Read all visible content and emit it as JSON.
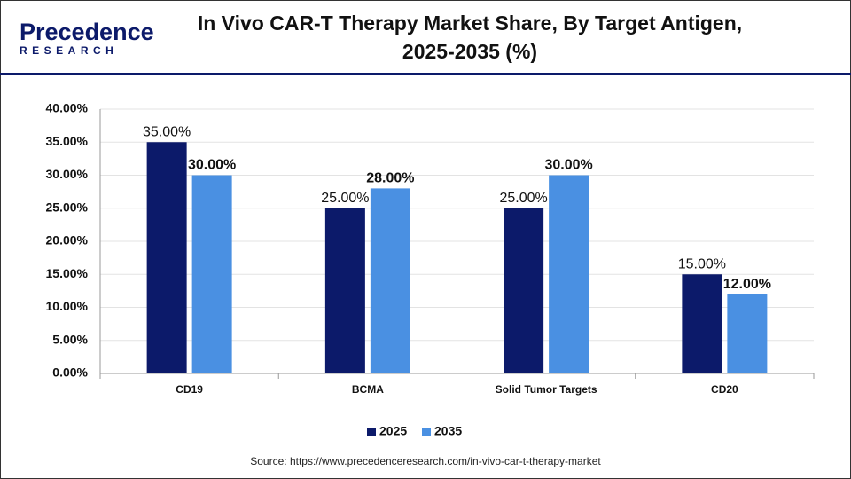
{
  "logo": {
    "name": "Precedence",
    "tagline": "RESEARCH"
  },
  "chart_data": {
    "type": "bar",
    "title": "In Vivo CAR-T Therapy Market Share, By Target Antigen, 2025-2035 (%)",
    "categories": [
      "CD19",
      "BCMA",
      "Solid Tumor Targets",
      "CD20"
    ],
    "series": [
      {
        "name": "2025",
        "color": "#0c1a6a",
        "values": [
          35,
          25,
          25,
          15
        ],
        "value_labels": [
          "35.00%",
          "25.00%",
          "25.00%",
          "15.00%"
        ]
      },
      {
        "name": "2035",
        "color": "#4a90e2",
        "values": [
          30,
          28,
          30,
          12
        ],
        "value_labels": [
          "30.00%",
          "28.00%",
          "30.00%",
          "12.00%"
        ]
      }
    ],
    "ylim": [
      0,
      40
    ],
    "yticks": [
      {
        "value": 0,
        "label": "0.00%"
      },
      {
        "value": 5,
        "label": "5.00%"
      },
      {
        "value": 10,
        "label": "10.00%"
      },
      {
        "value": 15,
        "label": "15.00%"
      },
      {
        "value": 20,
        "label": "20.00%"
      },
      {
        "value": 25,
        "label": "25.00%"
      },
      {
        "value": 30,
        "label": "30.00%"
      },
      {
        "value": 35,
        "label": "35.00%"
      },
      {
        "value": 40,
        "label": "40.00%"
      }
    ],
    "grid": true,
    "legend": "bottom",
    "source": "Source: https://www.precedenceresearch.com/in-vivo-car-t-therapy-market"
  }
}
